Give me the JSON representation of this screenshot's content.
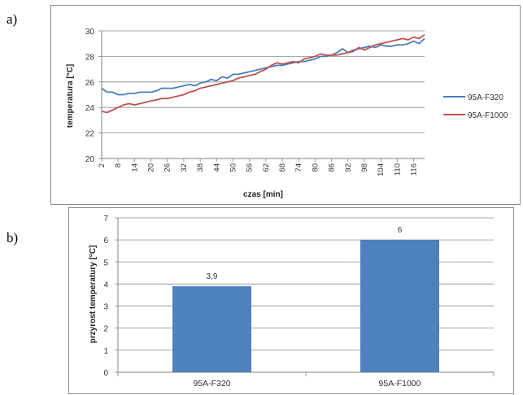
{
  "panel_labels": [
    "a)",
    "b)"
  ],
  "chart_data": [
    {
      "type": "line",
      "xlabel": "czas [min]",
      "ylabel": "temperatura [°C]",
      "ylim": [
        20,
        30
      ],
      "yticks": [
        "20",
        "22",
        "24",
        "26",
        "28",
        "30"
      ],
      "x_tick_labels": [
        "2",
        "8",
        "14",
        "20",
        "26",
        "32",
        "38",
        "44",
        "50",
        "56",
        "62",
        "68",
        "74",
        "80",
        "86",
        "92",
        "98",
        "104",
        "110",
        "116"
      ],
      "x_range": [
        2,
        120
      ],
      "grid": "horizontal",
      "legend_position": "right",
      "series": [
        {
          "name": "95A-F320",
          "color": "#4a7dbf",
          "x": [
            2,
            4,
            6,
            8,
            10,
            12,
            14,
            16,
            18,
            20,
            22,
            24,
            26,
            28,
            30,
            32,
            34,
            36,
            38,
            40,
            42,
            44,
            46,
            48,
            50,
            52,
            54,
            56,
            58,
            60,
            62,
            64,
            66,
            68,
            70,
            72,
            74,
            76,
            78,
            80,
            82,
            84,
            86,
            88,
            90,
            92,
            94,
            96,
            98,
            100,
            102,
            104,
            106,
            108,
            110,
            112,
            114,
            116,
            118,
            120
          ],
          "y": [
            25.5,
            25.2,
            25.2,
            25.0,
            25.0,
            25.1,
            25.1,
            25.2,
            25.2,
            25.2,
            25.3,
            25.5,
            25.5,
            25.5,
            25.6,
            25.7,
            25.8,
            25.7,
            25.9,
            26.0,
            26.2,
            26.1,
            26.4,
            26.3,
            26.6,
            26.6,
            26.7,
            26.8,
            26.9,
            27.0,
            27.1,
            27.2,
            27.3,
            27.3,
            27.4,
            27.5,
            27.6,
            27.6,
            27.7,
            27.8,
            28.0,
            28.0,
            28.1,
            28.3,
            28.6,
            28.3,
            28.5,
            28.6,
            28.7,
            28.8,
            28.7,
            28.9,
            28.8,
            28.8,
            28.9,
            28.9,
            29.0,
            29.2,
            29.0,
            29.4
          ]
        },
        {
          "name": "95A-F1000",
          "color": "#c0504d",
          "x": [
            2,
            4,
            6,
            8,
            10,
            12,
            14,
            16,
            18,
            20,
            22,
            24,
            26,
            28,
            30,
            32,
            34,
            36,
            38,
            40,
            42,
            44,
            46,
            48,
            50,
            52,
            54,
            56,
            58,
            60,
            62,
            64,
            66,
            68,
            70,
            72,
            74,
            76,
            78,
            80,
            82,
            84,
            86,
            88,
            90,
            92,
            94,
            96,
            98,
            100,
            102,
            104,
            106,
            108,
            110,
            112,
            114,
            116,
            118,
            120
          ],
          "y": [
            23.7,
            23.6,
            23.8,
            24.0,
            24.2,
            24.3,
            24.2,
            24.3,
            24.4,
            24.5,
            24.6,
            24.7,
            24.7,
            24.8,
            24.9,
            25.0,
            25.2,
            25.3,
            25.5,
            25.6,
            25.7,
            25.8,
            25.9,
            26.0,
            26.1,
            26.3,
            26.4,
            26.5,
            26.6,
            26.8,
            27.0,
            27.3,
            27.5,
            27.4,
            27.5,
            27.6,
            27.5,
            27.8,
            27.9,
            28.0,
            28.2,
            28.1,
            28.1,
            28.1,
            28.2,
            28.3,
            28.4,
            28.7,
            28.5,
            28.7,
            28.9,
            29.0,
            29.1,
            29.2,
            29.3,
            29.4,
            29.3,
            29.5,
            29.4,
            29.7
          ]
        }
      ]
    },
    {
      "type": "bar",
      "categories": [
        "95A-F320",
        "95A-F1000"
      ],
      "values": [
        3.9,
        6
      ],
      "value_labels": [
        "3,9",
        "6"
      ],
      "ylabel": "przyrost temperatury [°C]",
      "ylim": [
        0,
        7
      ],
      "yticks": [
        "0",
        "1",
        "2",
        "3",
        "4",
        "5",
        "6",
        "7"
      ],
      "bar_color": "#4f81bd",
      "grid": "horizontal"
    }
  ]
}
